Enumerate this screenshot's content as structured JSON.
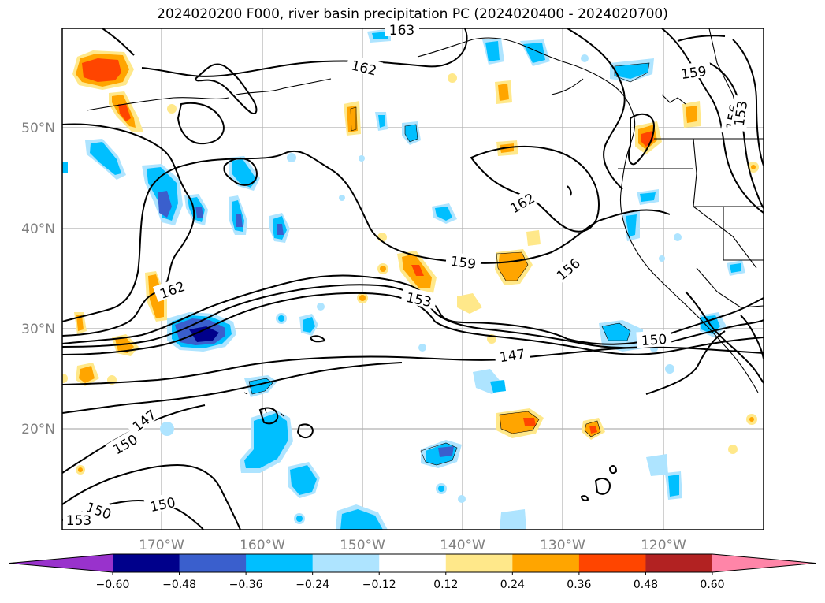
{
  "title": "2024020200 F000, river basin precipitation PC (2024020400 - 2024020700)",
  "axes": {
    "lat_labels": [
      "20°N",
      "30°N",
      "40°N",
      "50°N"
    ],
    "lon_labels": [
      "170°W",
      "160°W",
      "150°W",
      "140°W",
      "130°W",
      "120°W"
    ]
  },
  "contour_labels": [
    "163",
    "162",
    "159",
    "156",
    "153",
    "150",
    "147",
    "162",
    "159",
    "156",
    "153",
    "150",
    "147",
    "162",
    "150",
    "153"
  ],
  "colorbar": {
    "ticks": [
      "−0.60",
      "−0.48",
      "−0.36",
      "−0.24",
      "−0.12",
      "0.12",
      "0.24",
      "0.36",
      "0.48",
      "0.60"
    ],
    "colors": [
      "#9932cc",
      "#00008b",
      "#3a5fcd",
      "#00bfff",
      "#aee4ff",
      "#ffffff",
      "#ffe88a",
      "#ffa500",
      "#ff4500",
      "#b22222",
      "#ff85a8"
    ]
  }
}
